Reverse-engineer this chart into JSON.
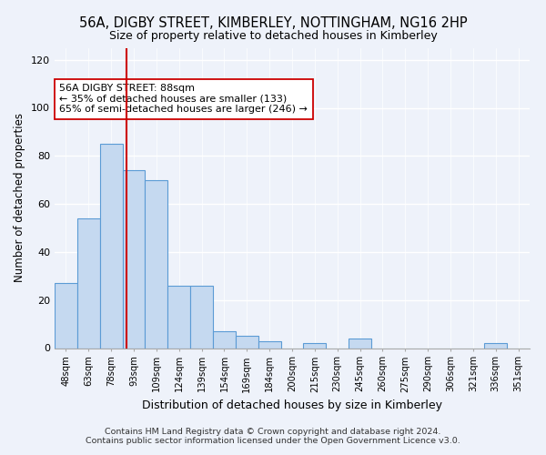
{
  "title": "56A, DIGBY STREET, KIMBERLEY, NOTTINGHAM, NG16 2HP",
  "subtitle": "Size of property relative to detached houses in Kimberley",
  "xlabel": "Distribution of detached houses by size in Kimberley",
  "ylabel": "Number of detached properties",
  "categories": [
    "48sqm",
    "63sqm",
    "78sqm",
    "93sqm",
    "109sqm",
    "124sqm",
    "139sqm",
    "154sqm",
    "169sqm",
    "184sqm",
    "200sqm",
    "215sqm",
    "230sqm",
    "245sqm",
    "260sqm",
    "275sqm",
    "290sqm",
    "306sqm",
    "321sqm",
    "336sqm",
    "351sqm"
  ],
  "values": [
    27,
    54,
    85,
    74,
    70,
    26,
    26,
    7,
    5,
    3,
    0,
    2,
    0,
    4,
    0,
    0,
    0,
    0,
    0,
    2,
    0
  ],
  "bar_color": "#c5d9f0",
  "bar_edge_color": "#5b9bd5",
  "annotation_box_text": "56A DIGBY STREET: 88sqm\n← 35% of detached houses are smaller (133)\n65% of semi-detached houses are larger (246) →",
  "red_line_x": 2.67,
  "ylim": [
    0,
    125
  ],
  "yticks": [
    0,
    20,
    40,
    60,
    80,
    100,
    120
  ],
  "footer_line1": "Contains HM Land Registry data © Crown copyright and database right 2024.",
  "footer_line2": "Contains public sector information licensed under the Open Government Licence v3.0.",
  "background_color": "#eef2fa",
  "title_fontsize": 10.5,
  "subtitle_fontsize": 9,
  "xlabel_fontsize": 9,
  "ylabel_fontsize": 8.5,
  "annotation_fontsize": 8,
  "footer_fontsize": 6.8
}
